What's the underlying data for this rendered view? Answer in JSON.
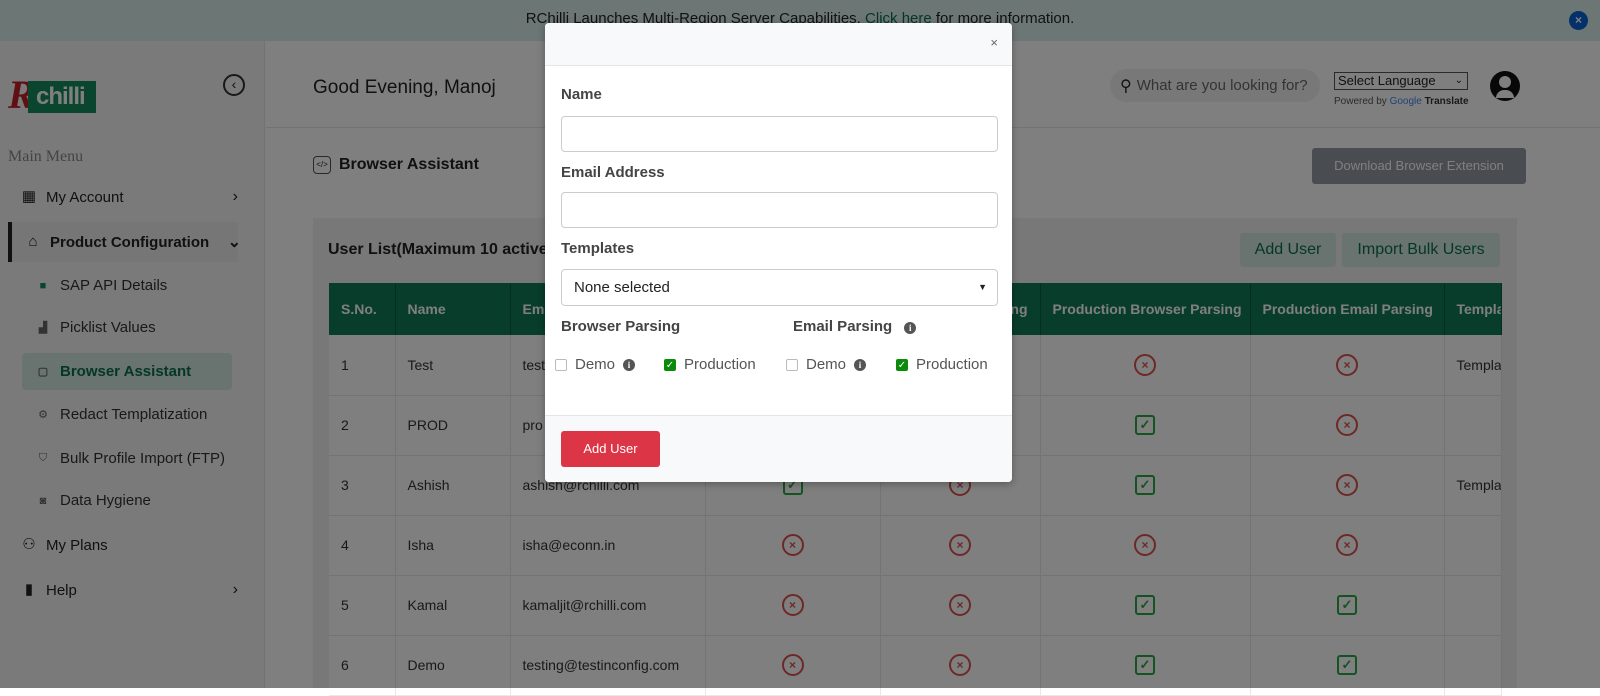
{
  "banner": {
    "text_before": "RChilli Launches Multi-Region Server Capabilities.",
    "link": "Click here",
    "text_after": "for more information."
  },
  "sidebar": {
    "logo": "RChilli",
    "main_menu_label": "Main Menu",
    "items": [
      {
        "label": "My Account",
        "icon": "grid-icon"
      },
      {
        "label": "Product Configuration",
        "icon": "store-icon"
      },
      {
        "label": "My Plans",
        "icon": "users-icon"
      },
      {
        "label": "Help",
        "icon": "book-icon"
      }
    ],
    "sub_items": [
      {
        "label": "SAP API Details"
      },
      {
        "label": "Picklist Values"
      },
      {
        "label": "Browser Assistant",
        "active": true
      },
      {
        "label": "Redact Templatization"
      },
      {
        "label": "Bulk Profile Import (FTP)"
      },
      {
        "label": "Data Hygiene"
      }
    ]
  },
  "header": {
    "greeting": "Good Evening, Manoj",
    "search_placeholder": "What are you looking for?",
    "language": "Select Language",
    "powered_by": "Powered by",
    "google": "Google",
    "translate": "Translate"
  },
  "page": {
    "title": "Browser Assistant",
    "download_button": "Download Browser Extension",
    "user_list_title": "User List(Maximum 10 active",
    "add_user": "Add User",
    "import_bulk": "Import Bulk Users"
  },
  "table": {
    "columns": [
      "S.No.",
      "Name",
      "Em",
      "",
      "ng",
      "Production Browser Parsing",
      "Production Email Parsing",
      "Templa"
    ],
    "rows": [
      {
        "sno": "1",
        "name": "Test",
        "email": "test",
        "c4": "",
        "c5": "",
        "pb": "x",
        "pe": "x",
        "template": "Templa"
      },
      {
        "sno": "2",
        "name": "PROD",
        "email": "pro",
        "c4": "",
        "c5": "",
        "pb": "check",
        "pe": "x",
        "template": ""
      },
      {
        "sno": "3",
        "name": "Ashish",
        "email": "ashish@rchilli.com",
        "c4": "check",
        "c5": "x",
        "pb": "check",
        "pe": "x",
        "template": "Templa"
      },
      {
        "sno": "4",
        "name": "Isha",
        "email": "isha@econn.in",
        "c4": "x",
        "c5": "x",
        "pb": "x",
        "pe": "x",
        "template": ""
      },
      {
        "sno": "5",
        "name": "Kamal",
        "email": "kamaljit@rchilli.com",
        "c4": "x",
        "c5": "x",
        "pb": "check",
        "pe": "check",
        "template": ""
      },
      {
        "sno": "6",
        "name": "Demo",
        "email": "testing@testinconfig.com",
        "c4": "x",
        "c5": "x",
        "pb": "check",
        "pe": "check",
        "template": ""
      }
    ]
  },
  "modal": {
    "close": "×",
    "name_label": "Name",
    "name_value": "",
    "email_label": "Email Address",
    "email_value": "",
    "templates_label": "Templates",
    "templates_value": "None selected",
    "browser_parsing_label": "Browser Parsing",
    "email_parsing_label": "Email Parsing",
    "demo": "Demo",
    "production": "Production",
    "browser_demo_checked": false,
    "browser_production_checked": true,
    "email_demo_checked": false,
    "email_production_checked": true,
    "submit": "Add User"
  },
  "colors": {
    "brand": "#117a59",
    "danger": "#dc3545",
    "success": "#28a745"
  }
}
